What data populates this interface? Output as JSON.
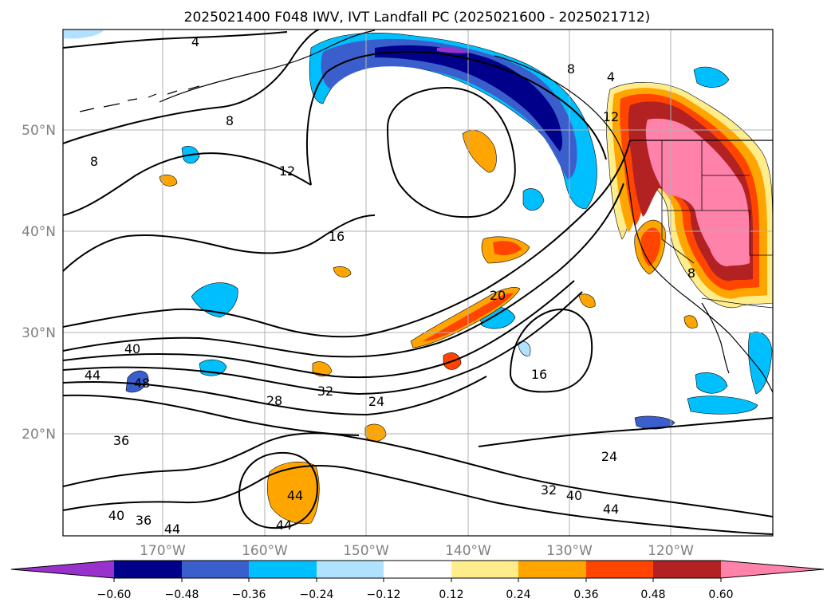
{
  "title": "2025021400 F048 IWV, IVT Landfall PC (2025021600 - 2025021712)",
  "map": {
    "lat_labels": [
      "50°N",
      "40°N",
      "30°N",
      "20°N"
    ],
    "lon_labels": [
      "170°W",
      "160°W",
      "150°W",
      "140°W",
      "130°W",
      "120°W"
    ],
    "label_color": "#808080",
    "grid_color": "#b0b0b0",
    "contour_labels": [
      {
        "id": "c4a",
        "text": "4"
      },
      {
        "id": "c4b",
        "text": "4"
      },
      {
        "id": "c8a",
        "text": "8"
      },
      {
        "id": "c8b",
        "text": "8"
      },
      {
        "id": "c8c",
        "text": "8"
      },
      {
        "id": "c8d",
        "text": "8"
      },
      {
        "id": "c12a",
        "text": "12"
      },
      {
        "id": "c12b",
        "text": "12"
      },
      {
        "id": "c16a",
        "text": "16"
      },
      {
        "id": "c16b",
        "text": "16"
      },
      {
        "id": "c20",
        "text": "20"
      },
      {
        "id": "c24a",
        "text": "24"
      },
      {
        "id": "c24b",
        "text": "24"
      },
      {
        "id": "c28",
        "text": "28"
      },
      {
        "id": "c32a",
        "text": "32"
      },
      {
        "id": "c32b",
        "text": "32"
      },
      {
        "id": "c36a",
        "text": "36"
      },
      {
        "id": "c36b",
        "text": "36"
      },
      {
        "id": "c40a",
        "text": "40"
      },
      {
        "id": "c40b",
        "text": "40"
      },
      {
        "id": "c40c",
        "text": "40"
      },
      {
        "id": "c44a",
        "text": "44"
      },
      {
        "id": "c44b",
        "text": "44"
      },
      {
        "id": "c44c",
        "text": "44"
      },
      {
        "id": "c44d",
        "text": "44"
      },
      {
        "id": "c44e",
        "text": "44"
      },
      {
        "id": "c48",
        "text": "48"
      }
    ]
  },
  "colorbar": {
    "colors": [
      "#9932cc",
      "#00008b",
      "#3a5fcd",
      "#00bfff",
      "#b0e2ff",
      "#ffffff",
      "#ffec8b",
      "#ffa500",
      "#ff4500",
      "#b22222",
      "#ff82ab"
    ],
    "tick_labels": [
      "−0.60",
      "−0.48",
      "−0.36",
      "−0.24",
      "−0.12",
      "0.12",
      "0.24",
      "0.36",
      "0.48",
      "0.60"
    ]
  }
}
